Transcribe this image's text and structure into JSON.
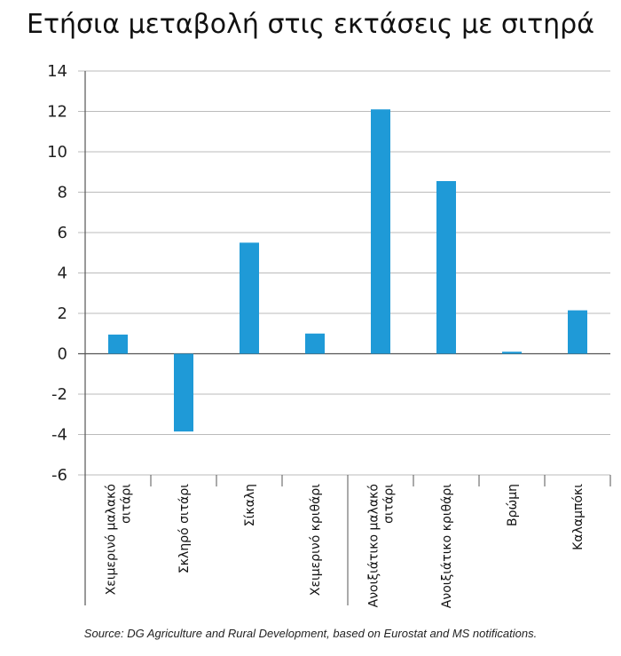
{
  "chart_data": {
    "type": "bar",
    "title": "Ετήσια μεταβολή στις εκτάσεις με σιτηρά",
    "xlabel": "",
    "ylabel": "",
    "ylim": [
      -6,
      14
    ],
    "yticks": [
      14,
      12,
      10,
      8,
      6,
      4,
      2,
      0,
      -2,
      -4,
      -6
    ],
    "grid": true,
    "categories": [
      [
        "Χειμερινό μαλακό",
        "σιτάρι"
      ],
      [
        "Σκληρό σιτάρι"
      ],
      [
        "Σίκαλη"
      ],
      [
        "Χειμερινό κριθάρι"
      ],
      [
        "Ανοιξιάτικο μαλακό",
        "σιτάρι"
      ],
      [
        "Ανοιξιάτικο κριθάρι"
      ],
      [
        "Βρώμη"
      ],
      [
        "Καλαμπόκι"
      ]
    ],
    "values": [
      0.95,
      -3.85,
      5.5,
      1.0,
      12.1,
      8.55,
      0.1,
      2.15
    ],
    "bar_color": "#1f9ad7",
    "grid_color": "#bbbbbb",
    "axis_color": "#555555"
  },
  "source_note": "Source: DG Agriculture and Rural Development, based on Eurostat and MS notifications."
}
